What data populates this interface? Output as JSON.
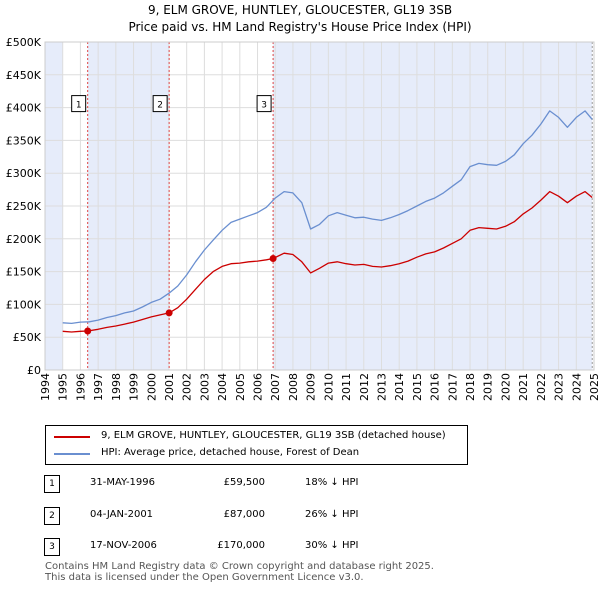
{
  "title_line1": "9, ELM GROVE, HUNTLEY, GLOUCESTER, GL19 3SB",
  "title_line2": "Price paid vs. HM Land Registry's House Price Index (HPI)",
  "colors": {
    "property": "#cc0000",
    "hpi": "#6a8fd0",
    "shade": "#e6ecfa",
    "grid": "#dddddd"
  },
  "legend": {
    "property_label": "9, ELM GROVE, HUNTLEY, GLOUCESTER, GL19 3SB (detached house)",
    "hpi_label": "HPI: Average price, detached house, Forest of Dean"
  },
  "sales": [
    {
      "num": "1",
      "date": "31-MAY-1996",
      "price": "£59,500",
      "hpi_diff": "18% ↓ HPI"
    },
    {
      "num": "2",
      "date": "04-JAN-2001",
      "price": "£87,000",
      "hpi_diff": "26% ↓ HPI"
    },
    {
      "num": "3",
      "date": "17-NOV-2006",
      "price": "£170,000",
      "hpi_diff": "30% ↓ HPI"
    }
  ],
  "footer_line1": "Contains HM Land Registry data © Crown copyright and database right 2025.",
  "footer_line2": "This data is licensed under the Open Government Licence v3.0.",
  "chart_data": {
    "type": "line",
    "xlim": [
      1994,
      2025
    ],
    "ylim": [
      0,
      500000
    ],
    "ytick_values": [
      0,
      50000,
      100000,
      150000,
      200000,
      250000,
      300000,
      350000,
      400000,
      450000,
      500000
    ],
    "ytick_labels": [
      "£0",
      "£50K",
      "£100K",
      "£150K",
      "£200K",
      "£250K",
      "£300K",
      "£350K",
      "£400K",
      "£450K",
      "£500K"
    ],
    "xtick_values": [
      1994,
      1995,
      1996,
      1997,
      1998,
      1999,
      2000,
      2001,
      2002,
      2003,
      2004,
      2005,
      2006,
      2007,
      2008,
      2009,
      2010,
      2011,
      2012,
      2013,
      2014,
      2015,
      2016,
      2017,
      2018,
      2019,
      2020,
      2021,
      2022,
      2023,
      2024,
      2025
    ],
    "xtick_labels": [
      "1994",
      "1995",
      "1996",
      "1997",
      "1998",
      "1999",
      "2000",
      "2001",
      "2002",
      "2003",
      "2004",
      "2005",
      "2006",
      "2007",
      "2008",
      "2009",
      "2010",
      "2011",
      "2012",
      "2013",
      "2014",
      "2015",
      "2016",
      "2017",
      "2018",
      "2019",
      "2020",
      "2021",
      "2022",
      "2023",
      "2024",
      "2025"
    ],
    "grid": true,
    "shaded_ranges": [
      [
        1994,
        1995
      ],
      [
        1996.41,
        2001.01
      ],
      [
        2006.88,
        2024.9
      ]
    ],
    "sale_markers": [
      {
        "label": "1",
        "x": 1996.41,
        "y": 59500
      },
      {
        "label": "2",
        "x": 2001.01,
        "y": 87000
      },
      {
        "label": "3",
        "x": 2006.88,
        "y": 170000
      }
    ],
    "series": [
      {
        "name": "HPI: Average price, detached house, Forest of Dean",
        "color": "#6a8fd0",
        "points": [
          [
            1995.0,
            72000
          ],
          [
            1995.5,
            71000
          ],
          [
            1996.0,
            73000
          ],
          [
            1996.5,
            73500
          ],
          [
            1997.0,
            76000
          ],
          [
            1997.5,
            80000
          ],
          [
            1998.0,
            83000
          ],
          [
            1998.5,
            87000
          ],
          [
            1999.0,
            90000
          ],
          [
            1999.5,
            96000
          ],
          [
            2000.0,
            103000
          ],
          [
            2000.5,
            108000
          ],
          [
            2001.0,
            117000
          ],
          [
            2001.5,
            128000
          ],
          [
            2002.0,
            145000
          ],
          [
            2002.5,
            165000
          ],
          [
            2003.0,
            183000
          ],
          [
            2003.5,
            198000
          ],
          [
            2004.0,
            213000
          ],
          [
            2004.5,
            225000
          ],
          [
            2005.0,
            230000
          ],
          [
            2005.5,
            235000
          ],
          [
            2006.0,
            240000
          ],
          [
            2006.5,
            248000
          ],
          [
            2007.0,
            262000
          ],
          [
            2007.5,
            272000
          ],
          [
            2008.0,
            270000
          ],
          [
            2008.5,
            255000
          ],
          [
            2009.0,
            215000
          ],
          [
            2009.5,
            222000
          ],
          [
            2010.0,
            235000
          ],
          [
            2010.5,
            240000
          ],
          [
            2011.0,
            236000
          ],
          [
            2011.5,
            232000
          ],
          [
            2012.0,
            233000
          ],
          [
            2012.5,
            230000
          ],
          [
            2013.0,
            228000
          ],
          [
            2013.5,
            232000
          ],
          [
            2014.0,
            237000
          ],
          [
            2014.5,
            243000
          ],
          [
            2015.0,
            250000
          ],
          [
            2015.5,
            257000
          ],
          [
            2016.0,
            262000
          ],
          [
            2016.5,
            270000
          ],
          [
            2017.0,
            280000
          ],
          [
            2017.5,
            290000
          ],
          [
            2018.0,
            310000
          ],
          [
            2018.5,
            315000
          ],
          [
            2019.0,
            313000
          ],
          [
            2019.5,
            312000
          ],
          [
            2020.0,
            318000
          ],
          [
            2020.5,
            328000
          ],
          [
            2021.0,
            345000
          ],
          [
            2021.5,
            358000
          ],
          [
            2022.0,
            375000
          ],
          [
            2022.5,
            395000
          ],
          [
            2023.0,
            385000
          ],
          [
            2023.5,
            370000
          ],
          [
            2024.0,
            385000
          ],
          [
            2024.5,
            395000
          ],
          [
            2024.9,
            382000
          ]
        ]
      },
      {
        "name": "9, ELM GROVE, HUNTLEY, GLOUCESTER, GL19 3SB (detached house)",
        "color": "#cc0000",
        "points": [
          [
            1995.0,
            59000
          ],
          [
            1995.5,
            58000
          ],
          [
            1996.0,
            59000
          ],
          [
            1996.41,
            59500
          ],
          [
            1997.0,
            62000
          ],
          [
            1997.5,
            65000
          ],
          [
            1998.0,
            67000
          ],
          [
            1998.5,
            70000
          ],
          [
            1999.0,
            73000
          ],
          [
            1999.5,
            77000
          ],
          [
            2000.0,
            81000
          ],
          [
            2000.5,
            84000
          ],
          [
            2001.01,
            87000
          ],
          [
            2001.5,
            95000
          ],
          [
            2002.0,
            108000
          ],
          [
            2002.5,
            123000
          ],
          [
            2003.0,
            138000
          ],
          [
            2003.5,
            150000
          ],
          [
            2004.0,
            158000
          ],
          [
            2004.5,
            162000
          ],
          [
            2005.0,
            163000
          ],
          [
            2005.5,
            165000
          ],
          [
            2006.0,
            166000
          ],
          [
            2006.5,
            168000
          ],
          [
            2006.88,
            170000
          ],
          [
            2007.5,
            178000
          ],
          [
            2008.0,
            176000
          ],
          [
            2008.5,
            165000
          ],
          [
            2009.0,
            148000
          ],
          [
            2009.5,
            155000
          ],
          [
            2010.0,
            163000
          ],
          [
            2010.5,
            165000
          ],
          [
            2011.0,
            162000
          ],
          [
            2011.5,
            160000
          ],
          [
            2012.0,
            161000
          ],
          [
            2012.5,
            158000
          ],
          [
            2013.0,
            157000
          ],
          [
            2013.5,
            159000
          ],
          [
            2014.0,
            162000
          ],
          [
            2014.5,
            166000
          ],
          [
            2015.0,
            172000
          ],
          [
            2015.5,
            177000
          ],
          [
            2016.0,
            180000
          ],
          [
            2016.5,
            186000
          ],
          [
            2017.0,
            193000
          ],
          [
            2017.5,
            200000
          ],
          [
            2018.0,
            213000
          ],
          [
            2018.5,
            217000
          ],
          [
            2019.0,
            216000
          ],
          [
            2019.5,
            215000
          ],
          [
            2020.0,
            219000
          ],
          [
            2020.5,
            226000
          ],
          [
            2021.0,
            238000
          ],
          [
            2021.5,
            247000
          ],
          [
            2022.0,
            259000
          ],
          [
            2022.5,
            272000
          ],
          [
            2023.0,
            265000
          ],
          [
            2023.5,
            255000
          ],
          [
            2024.0,
            265000
          ],
          [
            2024.5,
            272000
          ],
          [
            2024.9,
            263000
          ]
        ]
      }
    ]
  }
}
